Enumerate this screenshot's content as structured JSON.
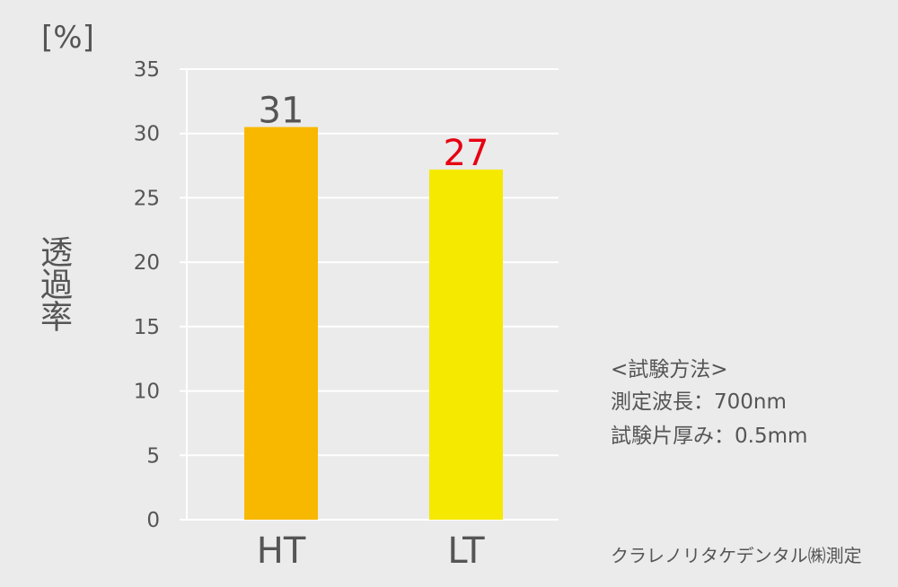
{
  "chart_data": {
    "type": "bar",
    "categories": [
      "HT",
      "LT"
    ],
    "values": [
      30.5,
      27.2
    ],
    "data_labels": [
      "31",
      "27"
    ],
    "bar_colors": [
      "#f8b800",
      "#f5e900"
    ],
    "label_colors": [
      "#555555",
      "#e60012"
    ],
    "unit": "[%]",
    "ylabel": "透過率",
    "ylim": [
      0,
      35
    ],
    "yticks": [
      0,
      5,
      10,
      15,
      20,
      25,
      30,
      35
    ],
    "grid": true
  },
  "notes": {
    "method_title": "<試験方法>",
    "wavelength": "測定波長：700nm",
    "thickness": "試験片厚み：0.5mm",
    "credit": "クラレノリタケデンタル㈱測定"
  }
}
